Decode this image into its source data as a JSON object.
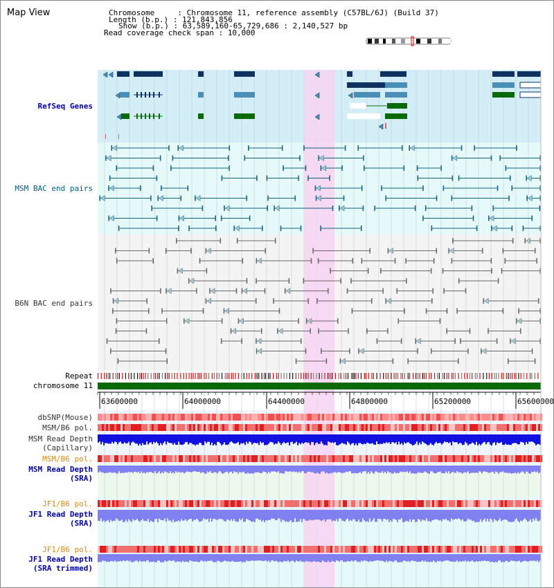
{
  "title": "Map View",
  "info": {
    "chromosome_label": "Chromosome     :",
    "chromosome_value": "Chromosome 11, reference assembly (C57BL/6J) (Build 37)",
    "length_label": "Length (b.p.) :",
    "length_value": "121,843,856",
    "show_label": "Show (b.p.) :",
    "show_value": "63,589,160-65,729,686 : 2,140,527 bp",
    "span_label": "Read coverage check span :",
    "span_value": "10,000"
  },
  "tracks": {
    "refseq": "RefSeq Genes",
    "msm_bac": "MSM BAC end pairs",
    "b6n_bac": "B6N BAC end pairs",
    "repeat": "Repeat",
    "chromosome": "chromosome 11",
    "dbsnp": "dbSNP(Mouse)",
    "msm_pol": "MSM/B6 pol.",
    "msm_depth_cap_1": "MSM Read Depth",
    "msm_depth_cap_2": "(Capillary)",
    "msm_pol_2": "MSM/B6 pol.",
    "msm_depth_sra_1": "MSM Read Depth",
    "msm_depth_sra_2": "(SRA)",
    "jf1_pol": "JF1/B6 pol.",
    "jf1_depth_1": "JF1 Read Depth",
    "jf1_depth_2": "(SRA)",
    "jf1_pol_2": "JF1/B6 pol.",
    "jf1_trim_1": "JF1 Read Depth",
    "jf1_trim_2": "(SRA trimmed)"
  },
  "axis_ticks": [
    "63600000",
    "64000000",
    "64400000",
    "64800000",
    "65200000",
    "65600000"
  ],
  "colors": {
    "refseq_bg": "#d4eef8",
    "bac_bg": "#e6fafa",
    "highlight": "#f8d4f2",
    "gene_navy": "#0e3160",
    "gene_steel": "#4a8fb8",
    "gene_green": "#0a6a0a",
    "msm_line": "#106080",
    "b6n_line": "#666666",
    "chrom_green": "#0a6a0a",
    "depth_blue": "#1010e0",
    "depth_light": "#8080f0"
  }
}
